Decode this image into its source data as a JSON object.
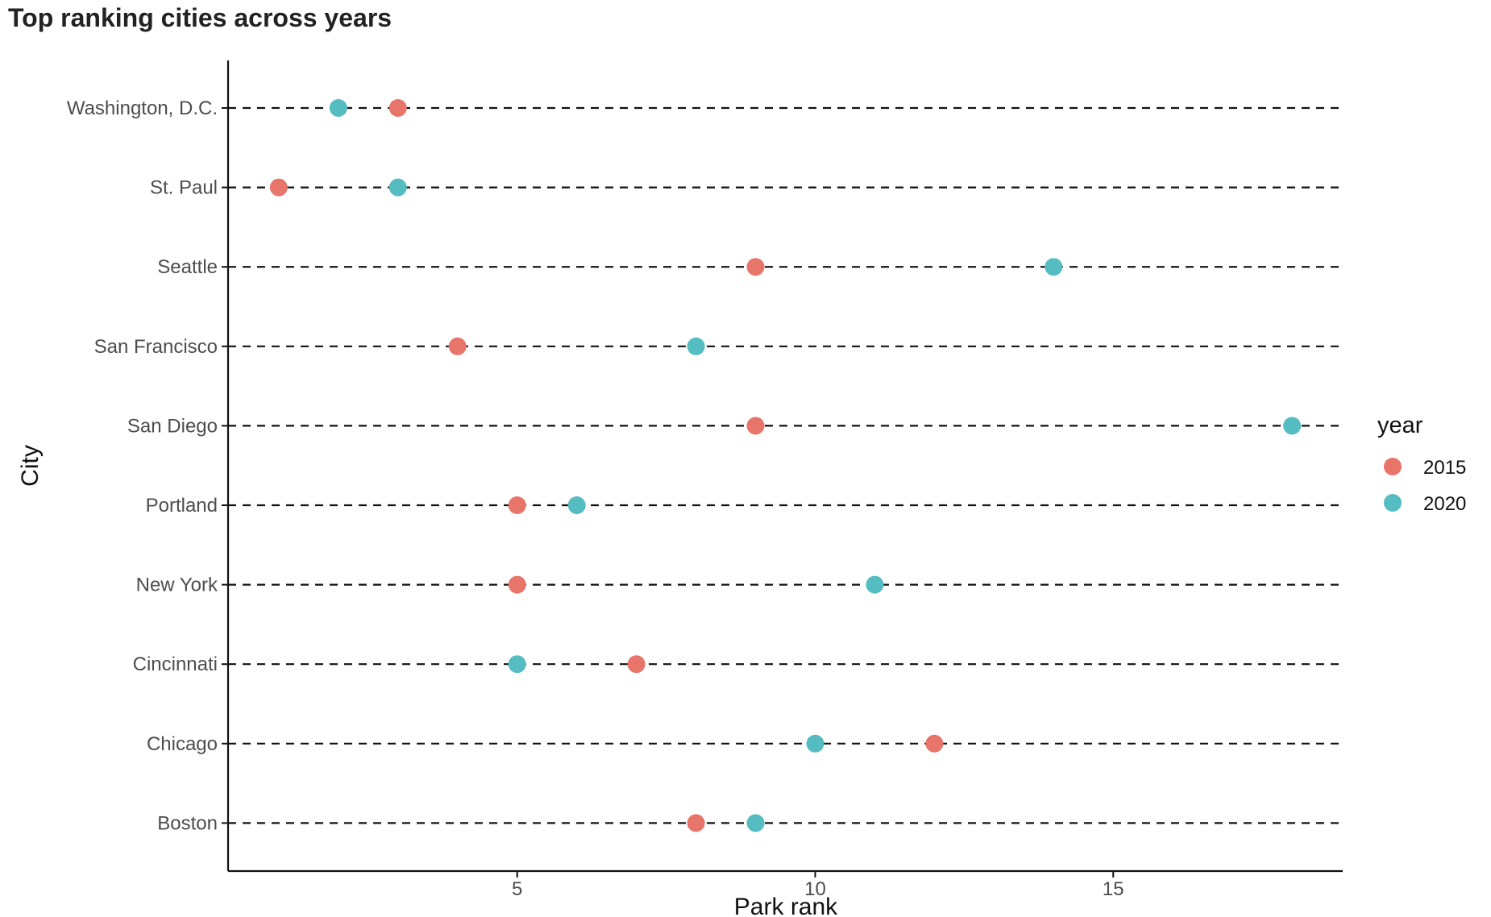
{
  "chart_data": {
    "type": "scatter",
    "title": "Top ranking cities across years",
    "xlabel": "Park rank",
    "ylabel": "City",
    "xlim": [
      0.15,
      18.85
    ],
    "x_ticks": [
      5,
      10,
      15
    ],
    "x_tick_labels": [
      "5",
      "10",
      "15"
    ],
    "categories": [
      "Washington, D.C.",
      "St. Paul",
      "Seattle",
      "San Francisco",
      "San Diego",
      "Portland",
      "New York",
      "Cincinnati",
      "Chicago",
      "Boston"
    ],
    "guide_lines": "dashed",
    "grid": false,
    "legend": {
      "title": "year",
      "placement": "right"
    },
    "series": [
      {
        "name": "2015",
        "color": "#E8756A",
        "values": [
          3,
          1,
          9,
          4,
          9,
          5,
          5,
          7,
          12,
          8
        ]
      },
      {
        "name": "2020",
        "color": "#55BCC2",
        "values": [
          2,
          3,
          14,
          8,
          18,
          6,
          11,
          5,
          10,
          9
        ]
      }
    ]
  }
}
